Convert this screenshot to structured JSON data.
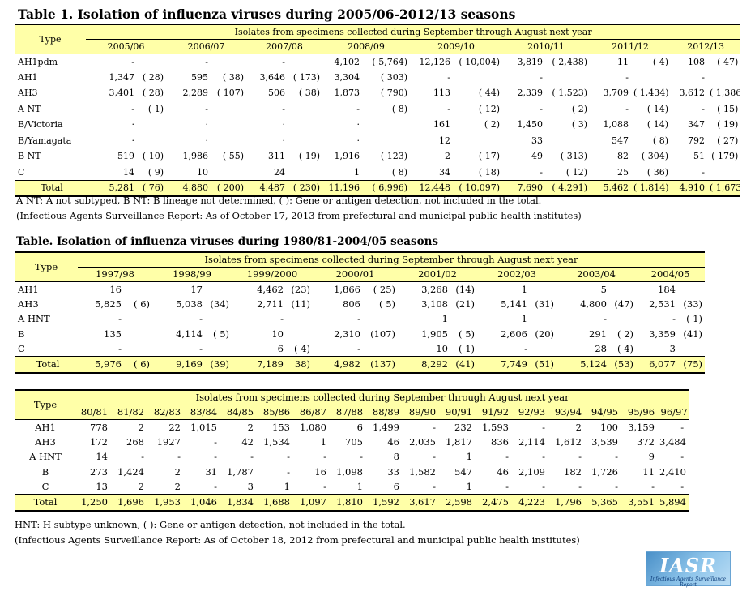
{
  "t1": {
    "title": "Table 1. Isolation of influenza viruses during 2005/06-2012/13 seasons",
    "type_label": "Type",
    "header": "Isolates from specimens collected during September through August next year",
    "seasons": [
      "2005/06",
      "2006/07",
      "2007/08",
      "2008/09",
      "2009/10",
      "2010/11",
      "2011/12",
      "2012/13"
    ],
    "rows": [
      {
        "type": "AH1pdm",
        "cells": [
          [
            "-",
            ""
          ],
          [
            "-",
            ""
          ],
          [
            "-",
            ""
          ],
          [
            "4,102",
            "( 5,764)"
          ],
          [
            "12,126",
            "( 10,004)"
          ],
          [
            "3,819",
            "( 2,438)"
          ],
          [
            "11",
            "( 4)"
          ],
          [
            "108",
            "( 47)"
          ]
        ]
      },
      {
        "type": "AH1",
        "cells": [
          [
            "1,347",
            "( 28)"
          ],
          [
            "595",
            "( 38)"
          ],
          [
            "3,646",
            "( 173)"
          ],
          [
            "3,304",
            "( 303)"
          ],
          [
            "-",
            ""
          ],
          [
            "-",
            ""
          ],
          [
            "-",
            ""
          ],
          [
            "-",
            ""
          ]
        ]
      },
      {
        "type": "AH3",
        "cells": [
          [
            "3,401",
            "( 28)"
          ],
          [
            "2,289",
            "( 107)"
          ],
          [
            "506",
            "( 38)"
          ],
          [
            "1,873",
            "( 790)"
          ],
          [
            "113",
            "( 44)"
          ],
          [
            "2,339",
            "( 1,523)"
          ],
          [
            "3,709",
            "( 1,434)"
          ],
          [
            "3,612",
            "( 1,386)"
          ]
        ]
      },
      {
        "type": "A NT",
        "cells": [
          [
            "-",
            "( 1)"
          ],
          [
            "-",
            ""
          ],
          [
            "-",
            ""
          ],
          [
            "-",
            "( 8)"
          ],
          [
            "-",
            "( 12)"
          ],
          [
            "-",
            "( 2)"
          ],
          [
            "-",
            "( 14)"
          ],
          [
            "-",
            "( 15)"
          ]
        ]
      },
      {
        "type": "B/Victoria",
        "cells": [
          [
            "·",
            ""
          ],
          [
            "·",
            ""
          ],
          [
            "·",
            ""
          ],
          [
            "·",
            ""
          ],
          [
            "161",
            "( 2)"
          ],
          [
            "1,450",
            "( 3)"
          ],
          [
            "1,088",
            "( 14)"
          ],
          [
            "347",
            "( 19)"
          ]
        ]
      },
      {
        "type": "B/Yamagata",
        "cells": [
          [
            "·",
            ""
          ],
          [
            "·",
            ""
          ],
          [
            "·",
            ""
          ],
          [
            "·",
            ""
          ],
          [
            "12",
            ""
          ],
          [
            "33",
            ""
          ],
          [
            "547",
            "( 8)"
          ],
          [
            "792",
            "( 27)"
          ]
        ]
      },
      {
        "type": "B NT",
        "cells": [
          [
            "519",
            "( 10)"
          ],
          [
            "1,986",
            "( 55)"
          ],
          [
            "311",
            "( 19)"
          ],
          [
            "1,916",
            "( 123)"
          ],
          [
            "2",
            "( 17)"
          ],
          [
            "49",
            "( 313)"
          ],
          [
            "82",
            "( 304)"
          ],
          [
            "51",
            "( 179)"
          ]
        ]
      },
      {
        "type": "C",
        "cells": [
          [
            "14",
            "( 9)"
          ],
          [
            "10",
            ""
          ],
          [
            "24",
            ""
          ],
          [
            "1",
            "( 8)"
          ],
          [
            "34",
            "( 18)"
          ],
          [
            "-",
            "( 12)"
          ],
          [
            "25",
            "( 36)"
          ],
          [
            "-",
            ""
          ]
        ]
      }
    ],
    "total": {
      "type": "Total",
      "cells": [
        [
          "5,281",
          "( 76)"
        ],
        [
          "4,880",
          "( 200)"
        ],
        [
          "4,487",
          "( 230)"
        ],
        [
          "11,196",
          "( 6,996)"
        ],
        [
          "12,448",
          "( 10,097)"
        ],
        [
          "7,690",
          "( 4,291)"
        ],
        [
          "5,462",
          "( 1,814)"
        ],
        [
          "4,910",
          "( 1,673)"
        ]
      ]
    },
    "note1": "A NT: A not subtyped, B NT: B lineage not determined, (   ): Gene or antigen detection, not included in the total.",
    "note2": "(Infectious Agents Surveillance Report: As of October 17, 2013 from prefectural and municipal public health institutes)"
  },
  "t2": {
    "title": "Table. Isolation of influenza viruses during 1980/81-2004/05 seasons",
    "type_label": "Type",
    "header": "Isolates from specimens collected during September through August next year",
    "seasons": [
      "1997/98",
      "1998/99",
      "1999/2000",
      "2000/01",
      "2001/02",
      "2002/03",
      "2003/04",
      "2004/05"
    ],
    "rows": [
      {
        "type": "AH1",
        "cells": [
          [
            "16",
            ""
          ],
          [
            "17",
            ""
          ],
          [
            "4,462",
            "(23)"
          ],
          [
            "1,866",
            "( 25)"
          ],
          [
            "3,268",
            "(14)"
          ],
          [
            "1",
            ""
          ],
          [
            "5",
            ""
          ],
          [
            "184",
            ""
          ]
        ]
      },
      {
        "type": "AH3",
        "cells": [
          [
            "5,825",
            "( 6)"
          ],
          [
            "5,038",
            "(34)"
          ],
          [
            "2,711",
            "(11)"
          ],
          [
            "806",
            "( 5)"
          ],
          [
            "3,108",
            "(21)"
          ],
          [
            "5,141",
            "(31)"
          ],
          [
            "4,800",
            "(47)"
          ],
          [
            "2,531",
            "(33)"
          ]
        ]
      },
      {
        "type": "A HNT",
        "cells": [
          [
            "-",
            ""
          ],
          [
            "-",
            ""
          ],
          [
            "-",
            ""
          ],
          [
            "-",
            ""
          ],
          [
            "1",
            ""
          ],
          [
            "1",
            ""
          ],
          [
            "-",
            ""
          ],
          [
            "-",
            "( 1)"
          ]
        ]
      },
      {
        "type": "B",
        "cells": [
          [
            "135",
            ""
          ],
          [
            "4,114",
            "( 5)"
          ],
          [
            "10",
            ""
          ],
          [
            "2,310",
            "(107)"
          ],
          [
            "1,905",
            "( 5)"
          ],
          [
            "2,606",
            "(20)"
          ],
          [
            "291",
            "( 2)"
          ],
          [
            "3,359",
            "(41)"
          ]
        ]
      },
      {
        "type": "C",
        "cells": [
          [
            "-",
            ""
          ],
          [
            "-",
            ""
          ],
          [
            "6",
            "( 4)"
          ],
          [
            "-",
            ""
          ],
          [
            "10",
            "( 1)"
          ],
          [
            "-",
            ""
          ],
          [
            "28",
            "( 4)"
          ],
          [
            "3",
            ""
          ]
        ]
      }
    ],
    "total": {
      "type": "Total",
      "cells": [
        [
          "5,976",
          "( 6)"
        ],
        [
          "9,169",
          "(39)"
        ],
        [
          "7,189",
          "38)"
        ],
        [
          "4,982",
          "(137)"
        ],
        [
          "8,292",
          "(41)"
        ],
        [
          "7,749",
          "(51)"
        ],
        [
          "5,124",
          "(53)"
        ],
        [
          "6,077",
          "(75)"
        ]
      ]
    }
  },
  "t3": {
    "type_label": "Type",
    "header": "Isolates from specimens collected during September through August next year",
    "seasons": [
      "80/81",
      "81/82",
      "82/83",
      "83/84",
      "84/85",
      "85/86",
      "86/87",
      "87/88",
      "88/89",
      "89/90",
      "90/91",
      "91/92",
      "92/93",
      "93/94",
      "94/95",
      "95/96",
      "96/97"
    ],
    "rows": [
      {
        "type": "AH1",
        "cells": [
          "778",
          "2",
          "22",
          "1,015",
          "2",
          "153",
          "1,080",
          "6",
          "1,499",
          "-",
          "232",
          "1,593",
          "-",
          "2",
          "100",
          "3,159",
          "-"
        ]
      },
      {
        "type": "AH3",
        "cells": [
          "172",
          "268",
          "1927",
          "-",
          "42",
          "1,534",
          "1",
          "705",
          "46",
          "2,035",
          "1,817",
          "836",
          "2,114",
          "1,612",
          "3,539",
          "372",
          "3,484"
        ]
      },
      {
        "type": "A HNT",
        "cells": [
          "14",
          "-",
          "-",
          "-",
          "-",
          "-",
          "-",
          "-",
          "8",
          "-",
          "1",
          "-",
          "-",
          "-",
          "-",
          "9",
          "-"
        ]
      },
      {
        "type": "B",
        "cells": [
          "273",
          "1,424",
          "2",
          "31",
          "1,787",
          "-",
          "16",
          "1,098",
          "33",
          "1,582",
          "547",
          "46",
          "2,109",
          "182",
          "1,726",
          "11",
          "2,410"
        ]
      },
      {
        "type": "C",
        "cells": [
          "13",
          "2",
          "2",
          "-",
          "3",
          "1",
          "-",
          "1",
          "6",
          "-",
          "1",
          "-",
          "-",
          "-",
          "-",
          "-",
          "-"
        ]
      }
    ],
    "total": {
      "type": "Total",
      "cells": [
        "1,250",
        "1,696",
        "1,953",
        "1,046",
        "1,834",
        "1,688",
        "1,097",
        "1,810",
        "1,592",
        "3,617",
        "2,598",
        "2,475",
        "4,223",
        "1,796",
        "5,365",
        "3,551",
        "5,894"
      ]
    },
    "note1": "HNT: H subtype unknown, (   ): Gene or antigen detection, not included in the total.",
    "note2": "(Infectious Agents Surveillance Report: As of October 18, 2012 from prefectural and municipal public health institutes)"
  },
  "logo": {
    "text": "IASR",
    "subtext": "Infectious Agents Surveillance Report"
  }
}
